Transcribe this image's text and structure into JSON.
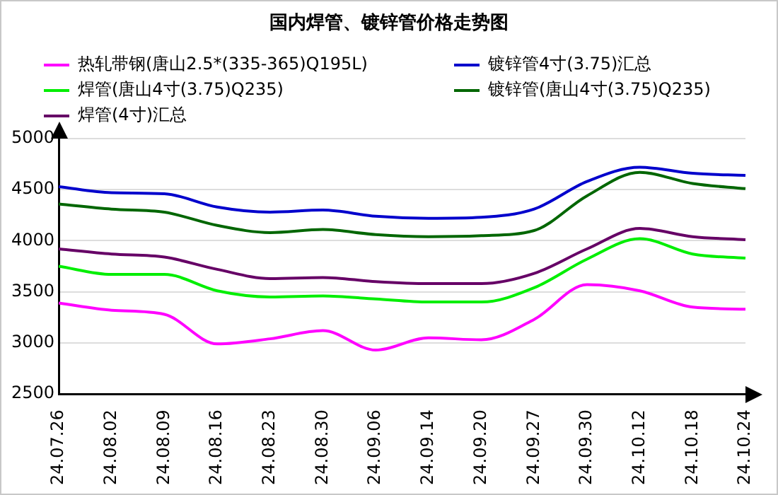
{
  "chart_data": {
    "type": "line",
    "title": "国内焊管、镀锌管价格走势图",
    "categories": [
      "24.07.26",
      "24.08.02",
      "24.08.09",
      "24.08.16",
      "24.08.23",
      "24.08.30",
      "24.09.06",
      "24.09.14",
      "24.09.20",
      "24.09.27",
      "24.09.30",
      "24.10.12",
      "24.10.18",
      "24.10.24"
    ],
    "series": [
      {
        "name": "热轧带钢(唐山2.5*(335-365)Q195L)",
        "color": "#ff00ff",
        "values": [
          3390,
          3320,
          3280,
          2990,
          3040,
          3120,
          2930,
          3050,
          3030,
          3230,
          3570,
          3510,
          3350,
          3330
        ]
      },
      {
        "name": "镀锌管4寸(3.75)汇总",
        "color": "#0000cc",
        "values": [
          4530,
          4470,
          4460,
          4330,
          4280,
          4300,
          4240,
          4220,
          4230,
          4310,
          4580,
          4720,
          4660,
          4640
        ]
      },
      {
        "name": "焊管(唐山4寸(3.75)Q235)",
        "color": "#00ee00",
        "values": [
          3750,
          3670,
          3670,
          3510,
          3450,
          3460,
          3430,
          3400,
          3400,
          3540,
          3820,
          4020,
          3870,
          3830
        ]
      },
      {
        "name": "镀锌管(唐山4寸(3.75)Q235)",
        "color": "#006600",
        "values": [
          4360,
          4310,
          4280,
          4150,
          4080,
          4110,
          4060,
          4040,
          4050,
          4100,
          4440,
          4670,
          4560,
          4510
        ]
      },
      {
        "name": "焊管(4寸)汇总",
        "color": "#660066",
        "values": [
          3920,
          3870,
          3840,
          3720,
          3630,
          3640,
          3600,
          3580,
          3580,
          3680,
          3920,
          4120,
          4040,
          4010
        ]
      }
    ],
    "ylim": [
      2500,
      5000
    ],
    "yticks": [
      2500,
      3000,
      3500,
      4000,
      4500,
      5000
    ],
    "grid": "y",
    "legend": "top",
    "marker": "none",
    "line_style": "solid"
  }
}
